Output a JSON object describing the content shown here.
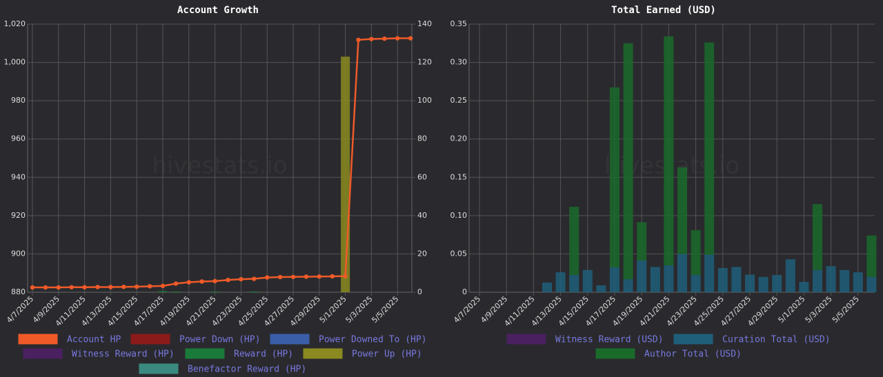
{
  "chart_data": [
    {
      "type": "bar",
      "title": "Account Growth",
      "watermark": "hivestats.io",
      "categories": [
        "4/7/2025",
        null,
        "4/9/2025",
        null,
        "4/11/2025",
        null,
        "4/13/2025",
        null,
        "4/15/2025",
        null,
        "4/17/2025",
        null,
        "4/19/2025",
        null,
        "4/21/2025",
        null,
        "4/23/2025",
        null,
        "4/25/2025",
        null,
        "4/27/2025",
        null,
        "4/29/2025",
        null,
        "5/1/2025",
        null,
        "5/3/2025",
        null,
        "5/5/2025",
        null
      ],
      "series": [
        {
          "name": "Account HP",
          "color": "#f05a28",
          "type": "line",
          "axis": "y",
          "values": [
            882.5,
            882.5,
            882.5,
            882.6,
            882.6,
            882.7,
            882.7,
            882.8,
            882.9,
            883.1,
            883.3,
            884.5,
            885.2,
            885.6,
            885.8,
            886.4,
            886.8,
            887.0,
            887.7,
            887.9,
            888.0,
            888.1,
            888.2,
            888.3,
            888.4,
            1011.8,
            1012.2,
            1012.4,
            1012.6,
            1012.6
          ]
        },
        {
          "name": "Power Down (HP)",
          "color": "#8b1a1a"
        },
        {
          "name": "Power Downed To (HP)",
          "color": "#3a5ea8"
        },
        {
          "name": "Witness Reward (HP)",
          "color": "#4a2060"
        },
        {
          "name": "Reward (HP)",
          "color": "#1a7a3a",
          "axis": "y2",
          "values": [
            null,
            null,
            null,
            null,
            null,
            null,
            null,
            null,
            null,
            null,
            0.6,
            0.4,
            null,
            null,
            0.4,
            null,
            null,
            0.4,
            null,
            null,
            null,
            null,
            null,
            null,
            null,
            null,
            null,
            null,
            null,
            null
          ]
        },
        {
          "name": "Power Up (HP)",
          "color": "#8a8a20",
          "axis": "y2",
          "values": [
            null,
            null,
            null,
            null,
            null,
            null,
            null,
            null,
            null,
            null,
            null,
            null,
            null,
            null,
            null,
            null,
            null,
            null,
            null,
            null,
            null,
            null,
            null,
            null,
            123,
            null,
            null,
            null,
            null,
            null
          ]
        },
        {
          "name": "Benefactor Reward (HP)",
          "color": "#3a8a80"
        }
      ],
      "ylim": [
        880,
        1020
      ],
      "yticks": [
        880,
        900,
        920,
        940,
        960,
        980,
        {
          "value": 1000,
          "label": "1,000"
        },
        {
          "value": 1020,
          "label": "1,020"
        }
      ],
      "y2lim": [
        0,
        140
      ],
      "y2ticks": [
        0,
        20,
        40,
        60,
        80,
        100,
        120,
        140
      ],
      "grid": true
    },
    {
      "type": "bar",
      "stacked": true,
      "title": "Total Earned (USD)",
      "watermark": "hivestats.io",
      "categories": [
        "4/7/2025",
        null,
        "4/9/2025",
        null,
        "4/11/2025",
        null,
        "4/13/2025",
        null,
        "4/15/2025",
        null,
        "4/17/2025",
        null,
        "4/19/2025",
        null,
        "4/21/2025",
        null,
        "4/23/2025",
        null,
        "4/25/2025",
        null,
        "4/27/2025",
        null,
        "4/29/2025",
        null,
        "5/1/2025",
        null,
        "5/3/2025",
        null,
        "5/5/2025",
        null
      ],
      "series": [
        {
          "name": "Witness Reward (USD)",
          "color": "#4a2060"
        },
        {
          "name": "Curation Total (USD)",
          "color": "#1f5f7a",
          "values": [
            null,
            null,
            null,
            null,
            null,
            0.0126,
            0.026,
            0.0225,
            0.029,
            0.009,
            0.0324,
            0.017,
            0.0414,
            0.033,
            0.035,
            0.05,
            0.0225,
            0.049,
            0.0315,
            0.033,
            0.023,
            0.02,
            0.0225,
            0.043,
            0.0135,
            0.029,
            0.034,
            0.029,
            0.026,
            0.02
          ]
        },
        {
          "name": "Author Total (USD)",
          "color": "#1a6a2a",
          "values": [
            null,
            null,
            null,
            null,
            null,
            null,
            null,
            0.089,
            null,
            null,
            0.235,
            0.308,
            0.05,
            null,
            0.299,
            0.113,
            0.0585,
            0.277,
            null,
            null,
            null,
            null,
            null,
            null,
            null,
            0.086,
            null,
            null,
            null,
            0.054
          ]
        }
      ],
      "ylim": [
        0,
        0.35
      ],
      "yticks": [
        0,
        0.05,
        {
          "value": 0.1,
          "label": "0.10"
        },
        0.15,
        {
          "value": 0.2,
          "label": "0.20"
        },
        0.25,
        {
          "value": 0.3,
          "label": "0.30"
        },
        0.35
      ],
      "grid": true
    }
  ]
}
